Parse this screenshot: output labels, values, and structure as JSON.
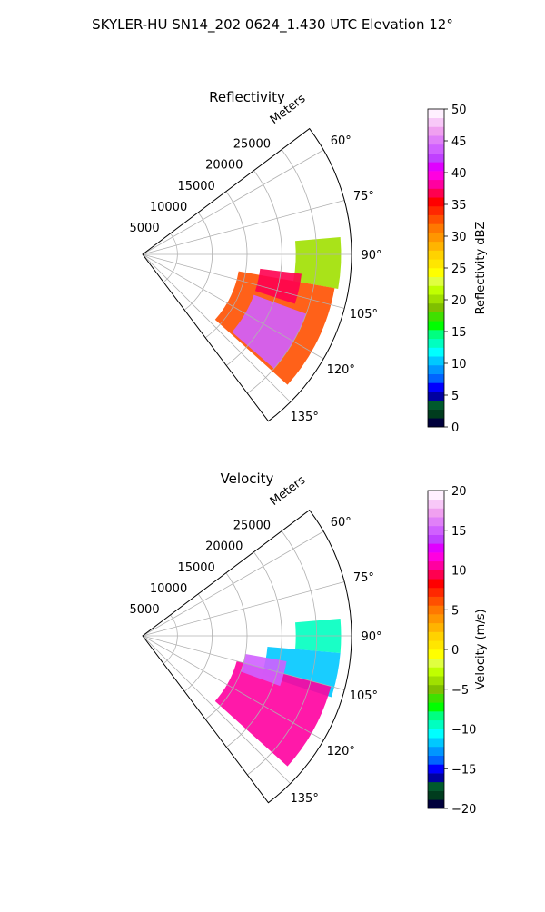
{
  "figure": {
    "suptitle": "SKYLER-HU  SN14_202  0624_1.430 UTC Elevation 12°"
  },
  "colors": {
    "grid": "#b0b0b0",
    "axis": "#000000"
  },
  "chart_data": [
    {
      "type": "heatmap",
      "projection": "polar-sector",
      "title": "Reflectivity",
      "range_label": "Meters",
      "range_ticks": [
        5000,
        10000,
        15000,
        20000,
        25000
      ],
      "range_max": 30000,
      "azimuth_ticks": [
        60,
        75,
        90,
        105,
        120,
        135
      ],
      "azimuth_ticks_text": [
        "60°",
        "75°",
        "90°",
        "105°",
        "120°",
        "135°"
      ],
      "azimuth_range": [
        53,
        143
      ],
      "colorbar": {
        "label": "Reflectivity dBZ",
        "range": [
          0,
          50
        ],
        "ticks": [
          0,
          5,
          10,
          15,
          20,
          25,
          30,
          35,
          40,
          45,
          50
        ],
        "ticks_text": [
          "0",
          "5",
          "10",
          "15",
          "20",
          "25",
          "30",
          "35",
          "40",
          "45",
          "50"
        ],
        "colors": [
          "#00003c",
          "#003c1e",
          "#005a2d",
          "#0000a0",
          "#0000ff",
          "#0064ff",
          "#0096ff",
          "#00c8ff",
          "#00ffff",
          "#00ffc0",
          "#00ff80",
          "#00ff00",
          "#40e000",
          "#80c000",
          "#a0e000",
          "#c0ff00",
          "#e0ff40",
          "#ffff00",
          "#ffe600",
          "#ffd200",
          "#ffb400",
          "#ff9600",
          "#ff7800",
          "#ff5000",
          "#ff2800",
          "#ff0000",
          "#ff0050",
          "#ff00a0",
          "#ff00e0",
          "#e000ff",
          "#c040ff",
          "#d060ff",
          "#e080f8",
          "#f0a0f0",
          "#f8c8f8",
          "#fff0ff"
        ]
      },
      "echo_regions": [
        {
          "az": [
            85,
            100
          ],
          "r": [
            22000,
            28500
          ],
          "value": 20
        },
        {
          "az": [
            100,
            132
          ],
          "r": [
            14000,
            28000
          ],
          "value": 33
        },
        {
          "az": [
            110,
            131
          ],
          "r": [
            17000,
            25000
          ],
          "value": 44
        },
        {
          "az": [
            97,
            108
          ],
          "r": [
            17000,
            23000
          ],
          "value": 37
        }
      ]
    },
    {
      "type": "heatmap",
      "projection": "polar-sector",
      "title": "Velocity",
      "range_label": "Meters",
      "range_ticks": [
        5000,
        10000,
        15000,
        20000,
        25000
      ],
      "range_max": 30000,
      "azimuth_ticks": [
        60,
        75,
        90,
        105,
        120,
        135
      ],
      "azimuth_ticks_text": [
        "60°",
        "75°",
        "90°",
        "105°",
        "120°",
        "135°"
      ],
      "azimuth_range": [
        53,
        143
      ],
      "colorbar": {
        "label": "Velocity (m/s)",
        "range": [
          -20,
          20
        ],
        "ticks": [
          -20,
          -15,
          -10,
          -5,
          0,
          5,
          10,
          15,
          20
        ],
        "ticks_text": [
          "−20",
          "−15",
          "−10",
          "−5",
          "0",
          "5",
          "10",
          "15",
          "20"
        ],
        "colors": [
          "#00003c",
          "#003c1e",
          "#005a2d",
          "#0000a0",
          "#0000ff",
          "#0064ff",
          "#0096ff",
          "#00c8ff",
          "#00ffff",
          "#00ffc0",
          "#00ff80",
          "#00ff00",
          "#40e000",
          "#80c000",
          "#a0e000",
          "#c0ff00",
          "#e0ff40",
          "#ffff00",
          "#ffe600",
          "#ffd200",
          "#ffb400",
          "#ff9600",
          "#ff7800",
          "#ff5000",
          "#ff2800",
          "#ff0000",
          "#ff0050",
          "#ff00a0",
          "#ff00e0",
          "#e000ff",
          "#c040ff",
          "#d060ff",
          "#e080f8",
          "#f0a0f0",
          "#f8c8f8",
          "#fff0ff"
        ]
      },
      "echo_regions": [
        {
          "az": [
            85,
            95
          ],
          "r": [
            22000,
            28500
          ],
          "value": -10
        },
        {
          "az": [
            95,
            108
          ],
          "r": [
            18000,
            28500
          ],
          "value": -12
        },
        {
          "az": [
            105,
            132
          ],
          "r": [
            14000,
            28000
          ],
          "value": 10
        },
        {
          "az": [
            100,
            110
          ],
          "r": [
            15000,
            21000
          ],
          "value": 15
        }
      ]
    }
  ]
}
